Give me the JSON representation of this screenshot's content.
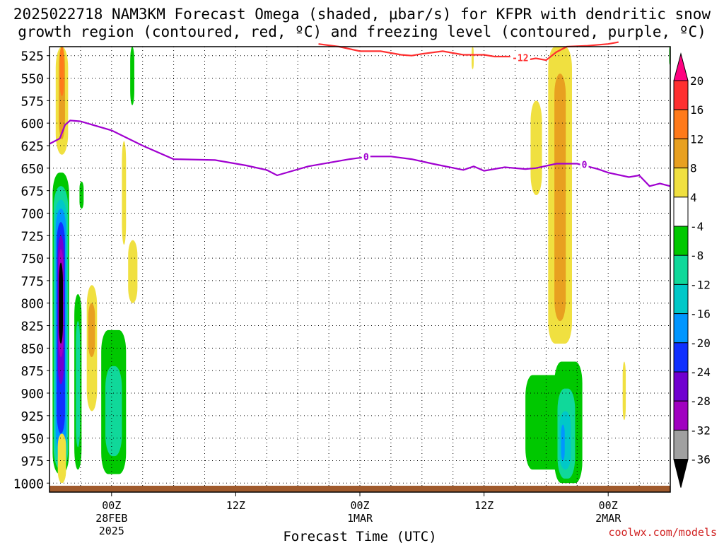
{
  "title_line1": "2025022718 NAM3KM Forecast Omega (shaded, μbar/s) for KFPR with dendritic snow",
  "title_line2": "growth region (contoured, red, ºC) and freezing level (contoured, purple, ºC)",
  "credit": "coolwx.com/models",
  "chart_data": {
    "type": "heatmap",
    "title": "2025022718 NAM3KM Forecast Omega (shaded, μbar/s) for KFPR with dendritic snow growth region (contoured, red, ºC) and freezing level (contoured, purple, ºC)",
    "xlabel": "Forecast Time (UTC)",
    "ylabel": "",
    "x_range_hours": [
      0,
      60
    ],
    "y_range_hpa": [
      515,
      1010
    ],
    "y_ticks": [
      525,
      550,
      575,
      600,
      625,
      650,
      675,
      700,
      725,
      750,
      775,
      800,
      825,
      850,
      875,
      900,
      925,
      950,
      975,
      1000
    ],
    "x_ticks": [
      {
        "hour": 6,
        "label": [
          "00Z",
          "28FEB",
          "2025"
        ]
      },
      {
        "hour": 18,
        "label": [
          "12Z"
        ]
      },
      {
        "hour": 30,
        "label": [
          "00Z",
          "1MAR"
        ]
      },
      {
        "hour": 42,
        "label": [
          "12Z"
        ]
      },
      {
        "hour": 54,
        "label": [
          "00Z",
          "2MAR"
        ]
      }
    ],
    "grid": "dotted",
    "colorbar": {
      "levels": [
        20,
        16,
        12,
        8,
        4,
        -4,
        -8,
        -12,
        -16,
        -20,
        -24,
        -28,
        -32,
        -36
      ],
      "colors": [
        "#ff0080",
        "#ff3030",
        "#ff7a1a",
        "#e8a020",
        "#f0e040",
        "#ffffff",
        "#00c800",
        "#10d89a",
        "#00c8c8",
        "#0096ff",
        "#1030ff",
        "#7000d0",
        "#a000c0",
        "#a0a0a0",
        "#000000"
      ]
    },
    "contours": [
      {
        "name": "freezing level",
        "value": 0,
        "color": "#a000d0",
        "points": [
          [
            0,
            623
          ],
          [
            1,
            617
          ],
          [
            1.5,
            602
          ],
          [
            2,
            597
          ],
          [
            3,
            598
          ],
          [
            6,
            608
          ],
          [
            9,
            625
          ],
          [
            12,
            640
          ],
          [
            16,
            641
          ],
          [
            19,
            647
          ],
          [
            21,
            652
          ],
          [
            22,
            658
          ],
          [
            25,
            648
          ],
          [
            29,
            640
          ],
          [
            31,
            637
          ],
          [
            33,
            637
          ],
          [
            35,
            640
          ],
          [
            37,
            645
          ],
          [
            40,
            652
          ],
          [
            41,
            648
          ],
          [
            42,
            653
          ],
          [
            44,
            649
          ],
          [
            46,
            651
          ],
          [
            47,
            650
          ],
          [
            49,
            645
          ],
          [
            51,
            645
          ],
          [
            52,
            648
          ],
          [
            53,
            651
          ],
          [
            54,
            655
          ],
          [
            56,
            660
          ],
          [
            57,
            658
          ],
          [
            58,
            670
          ],
          [
            59,
            667
          ],
          [
            60,
            670
          ]
        ]
      },
      {
        "name": "dendritic growth top",
        "value": -12,
        "color": "#ff3030",
        "points": [
          [
            26,
            512
          ],
          [
            28,
            515
          ],
          [
            30,
            520
          ],
          [
            32,
            520
          ],
          [
            34,
            524
          ],
          [
            35,
            525
          ],
          [
            36,
            523
          ],
          [
            38,
            520
          ],
          [
            40,
            524
          ],
          [
            42,
            524
          ],
          [
            43,
            526
          ],
          [
            45,
            526
          ],
          [
            46,
            530
          ],
          [
            47,
            528
          ],
          [
            48,
            530
          ],
          [
            49,
            521
          ],
          [
            50,
            515
          ],
          [
            52,
            514
          ],
          [
            54,
            512
          ],
          [
            55,
            510
          ]
        ]
      }
    ],
    "shaded_regions": [
      {
        "value": 4,
        "hours": [
          0.6,
          1.8
        ],
        "top": 515,
        "bottom": 635
      },
      {
        "value": 8,
        "hours": [
          0.9,
          1.5
        ],
        "top": 515,
        "bottom": 618
      },
      {
        "value": 12,
        "hours": [
          1.0,
          1.4
        ],
        "top": 515,
        "bottom": 570
      },
      {
        "value": -8,
        "hours": [
          0.3,
          1.9
        ],
        "top": 655,
        "bottom": 990
      },
      {
        "value": -12,
        "hours": [
          0.4,
          1.8
        ],
        "top": 670,
        "bottom": 985
      },
      {
        "value": -16,
        "hours": [
          0.5,
          1.7
        ],
        "top": 685,
        "bottom": 975
      },
      {
        "value": -20,
        "hours": [
          0.6,
          1.6
        ],
        "top": 695,
        "bottom": 965
      },
      {
        "value": -24,
        "hours": [
          0.7,
          1.5
        ],
        "top": 710,
        "bottom": 945
      },
      {
        "value": -28,
        "hours": [
          0.8,
          1.4
        ],
        "top": 725,
        "bottom": 890
      },
      {
        "value": -32,
        "hours": [
          0.85,
          1.35
        ],
        "top": 740,
        "bottom": 860
      },
      {
        "value": -36,
        "hours": [
          0.9,
          1.3
        ],
        "top": 755,
        "bottom": 845
      },
      {
        "value": 4,
        "hours": [
          0.8,
          1.6
        ],
        "top": 945,
        "bottom": 1000
      },
      {
        "value": -8,
        "hours": [
          2.4,
          3.1
        ],
        "top": 790,
        "bottom": 985
      },
      {
        "value": -12,
        "hours": [
          2.55,
          2.95
        ],
        "top": 820,
        "bottom": 960
      },
      {
        "value": -8,
        "hours": [
          2.9,
          3.3
        ],
        "top": 665,
        "bottom": 695
      },
      {
        "value": 4,
        "hours": [
          3.6,
          4.6
        ],
        "top": 780,
        "bottom": 920
      },
      {
        "value": 8,
        "hours": [
          3.75,
          4.4
        ],
        "top": 800,
        "bottom": 860
      },
      {
        "value": -8,
        "hours": [
          5.0,
          7.4
        ],
        "top": 830,
        "bottom": 990
      },
      {
        "value": -12,
        "hours": [
          5.4,
          7.0
        ],
        "top": 870,
        "bottom": 970
      },
      {
        "value": -8,
        "hours": [
          7.8,
          8.2
        ],
        "top": 515,
        "bottom": 580
      },
      {
        "value": 4,
        "hours": [
          7.0,
          7.4
        ],
        "top": 620,
        "bottom": 735
      },
      {
        "value": 4,
        "hours": [
          7.6,
          8.5
        ],
        "top": 730,
        "bottom": 800
      },
      {
        "value": 4,
        "hours": [
          40.8,
          41.0
        ],
        "top": 515,
        "bottom": 540
      },
      {
        "value": 4,
        "hours": [
          46.5,
          47.6
        ],
        "top": 575,
        "bottom": 680
      },
      {
        "value": 4,
        "hours": [
          48.2,
          50.5
        ],
        "top": 515,
        "bottom": 845
      },
      {
        "value": 8,
        "hours": [
          48.8,
          49.9
        ],
        "top": 545,
        "bottom": 820
      },
      {
        "value": -8,
        "hours": [
          46.0,
          50.0
        ],
        "top": 880,
        "bottom": 985
      },
      {
        "value": -8,
        "hours": [
          48.8,
          51.5
        ],
        "top": 865,
        "bottom": 1000
      },
      {
        "value": -12,
        "hours": [
          49.1,
          50.8
        ],
        "top": 895,
        "bottom": 995
      },
      {
        "value": -16,
        "hours": [
          49.3,
          50.4
        ],
        "top": 920,
        "bottom": 985
      },
      {
        "value": -20,
        "hours": [
          49.45,
          49.8
        ],
        "top": 935,
        "bottom": 975
      },
      {
        "value": 4,
        "hours": [
          55.4,
          55.7
        ],
        "top": 865,
        "bottom": 930
      },
      {
        "value": -8,
        "hours": [
          59.9,
          60.0
        ],
        "top": 515,
        "bottom": 535
      }
    ],
    "contour_labels": [
      {
        "text": "0",
        "hour": 30.6,
        "hpa": 637
      },
      {
        "text": "0",
        "hour": 51.7,
        "hpa": 646
      },
      {
        "text": "-12",
        "hour": 45.5,
        "hpa": 527
      }
    ],
    "terrain_color": "#a05a2c"
  }
}
